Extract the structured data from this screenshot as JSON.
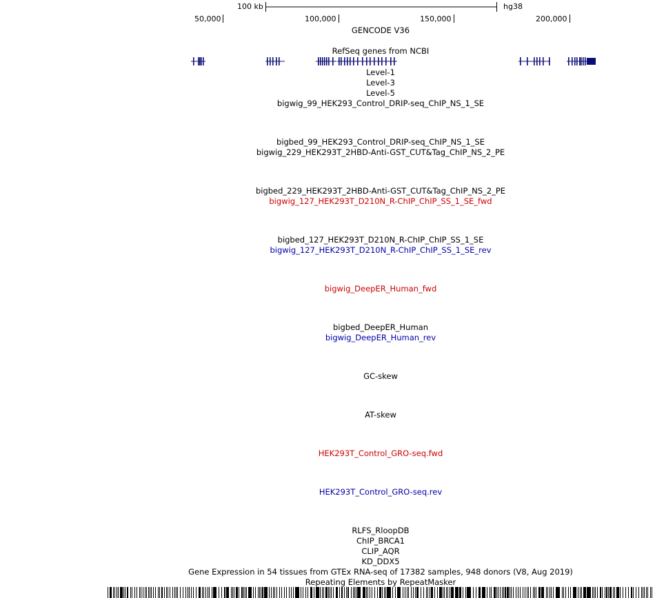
{
  "ruler": {
    "scale_label": "100 kb",
    "assembly": "hg38",
    "positions": [
      "50,000",
      "100,000",
      "150,000",
      "200,000"
    ]
  },
  "tracks": {
    "gencode": "GENCODE V36",
    "refseq": "RefSeq genes from NCBI",
    "level1": "Level-1",
    "level3": "Level-3",
    "level5": "Level-5",
    "bigwig_99": "bigwig_99_HEK293_Control_DRIP-seq_ChIP_NS_1_SE",
    "bigbed_99": "bigbed_99_HEK293_Control_DRIP-seq_ChIP_NS_1_SE",
    "bigwig_229": "bigwig_229_HEK293T_2HBD-Anti-GST_CUT&Tag_ChIP_NS_2_PE",
    "bigbed_229": "bigbed_229_HEK293T_2HBD-Anti-GST_CUT&Tag_ChIP_NS_2_PE",
    "bigwig_127_fwd": "bigwig_127_HEK293T_D210N_R-ChIP_ChIP_SS_1_SE_fwd",
    "bigbed_127": "bigbed_127_HEK293T_D210N_R-ChIP_ChIP_SS_1_SE",
    "bigwig_127_rev": "bigwig_127_HEK293T_D210N_R-ChIP_ChIP_SS_1_SE_rev",
    "deeper_fwd": "bigwig_DeepER_Human_fwd",
    "bigbed_deeper": "bigbed_DeepER_Human",
    "deeper_rev": "bigwig_DeepER_Human_rev",
    "gc_skew": "GC-skew",
    "at_skew": "AT-skew",
    "gro_fwd": "HEK293T_Control_GRO-seq.fwd",
    "gro_rev": "HEK293T_Control_GRO-seq.rev",
    "rlfs": "RLFS_RloopDB",
    "chip_brca1": "ChIP_BRCA1",
    "clip_aqr": "CLIP_AQR",
    "kd_ddx5": "KD_DDX5",
    "gtex": "Gene Expression in 54 tissues from GTEx RNA-seq of 17382 samples, 948 donors (V8, Aug 2019)",
    "repeatmasker": "Repeating Elements by RepeatMasker"
  },
  "colors": {
    "black": "#000000",
    "red": "#cc0000",
    "blue": "#0000aa",
    "gene_navy": "#0c0c78"
  }
}
